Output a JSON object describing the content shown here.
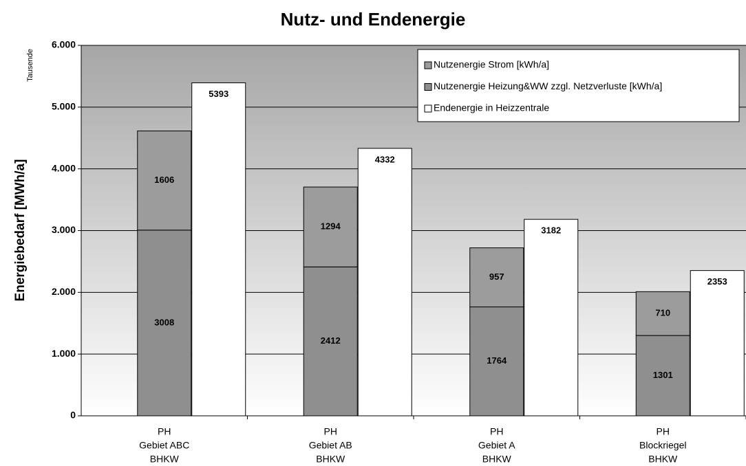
{
  "chart_data": {
    "type": "bar",
    "title": "Nutz- und Endenergie",
    "y_label": "Energiebedarf [MWh/a]",
    "y_unit_note": "Tausende",
    "categories": [
      [
        "PH",
        "Gebiet ABC",
        "BHKW"
      ],
      [
        "PH",
        "Gebiet AB",
        "BHKW"
      ],
      [
        "PH",
        "Gebiet A",
        "BHKW"
      ],
      [
        "PH",
        "Blockriegel",
        "BHKW"
      ]
    ],
    "series": [
      {
        "name": "Nutzenergie Strom [kWh/a]",
        "color": "#9c9c9c",
        "values": [
          1606,
          1294,
          957,
          710
        ]
      },
      {
        "name": "Nutzenergie Heizung&WW zzgl. Netzverluste [kWh/a]",
        "color": "#8f8f8f",
        "values": [
          3008,
          2412,
          1764,
          1301
        ]
      },
      {
        "name": "Endenergie in Heizzentrale",
        "color": "#ffffff",
        "values": [
          5393,
          4332,
          3182,
          2353
        ]
      }
    ],
    "ylim": [
      0,
      6000
    ],
    "yticks": [
      0,
      {
        "value": 1000,
        "label": "1.000"
      },
      {
        "value": 2000,
        "label": "2.000"
      },
      {
        "value": 3000,
        "label": "3.000"
      },
      {
        "value": 4000,
        "label": "4.000"
      },
      {
        "value": 5000,
        "label": "5.000"
      },
      {
        "value": 6000,
        "label": "6.000"
      }
    ],
    "grid": true,
    "legend": "top-right"
  }
}
